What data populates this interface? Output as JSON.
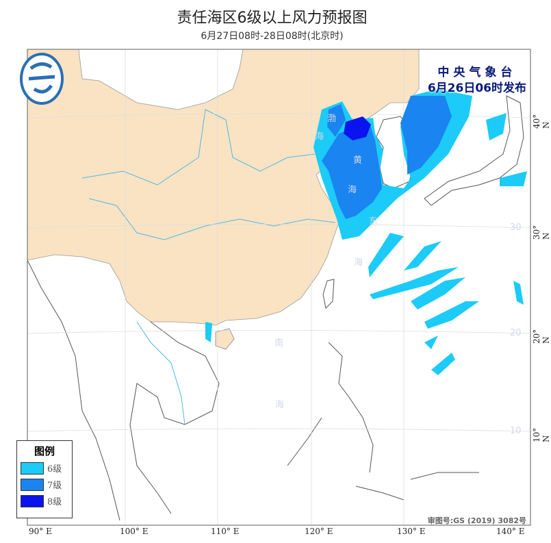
{
  "title": "责任海区6级以上风力预报图",
  "subtitle": "6月27日08时-28日08时(北京时)",
  "issuer": {
    "name": "中央气象台",
    "issued": "6月26日06时发布"
  },
  "legend": {
    "title": "图例",
    "items": [
      {
        "label": "6级",
        "color": "#1ccbf7"
      },
      {
        "label": "7级",
        "color": "#1a84f0"
      },
      {
        "label": "8级",
        "color": "#0a14ee"
      }
    ]
  },
  "axes": {
    "longitude": [
      "90° E",
      "100° E",
      "110° E",
      "120° E",
      "130° E",
      "140° E"
    ],
    "latitude": [
      "40° N",
      "30° N",
      "20° N",
      "10° N"
    ],
    "inner_lat_labels": [
      "30",
      "20",
      "10"
    ]
  },
  "sea_labels": {
    "bohai": [
      "渤",
      "海"
    ],
    "huanghai": [
      "黄",
      "海"
    ],
    "donghai": [
      "东",
      "海"
    ],
    "nanhai": [
      "南",
      "海"
    ]
  },
  "approval_number": "审图号:GS (2019) 3082号",
  "colors": {
    "land": "#fae3c3",
    "ocean": "#ffffff",
    "river": "#4db6e6"
  }
}
